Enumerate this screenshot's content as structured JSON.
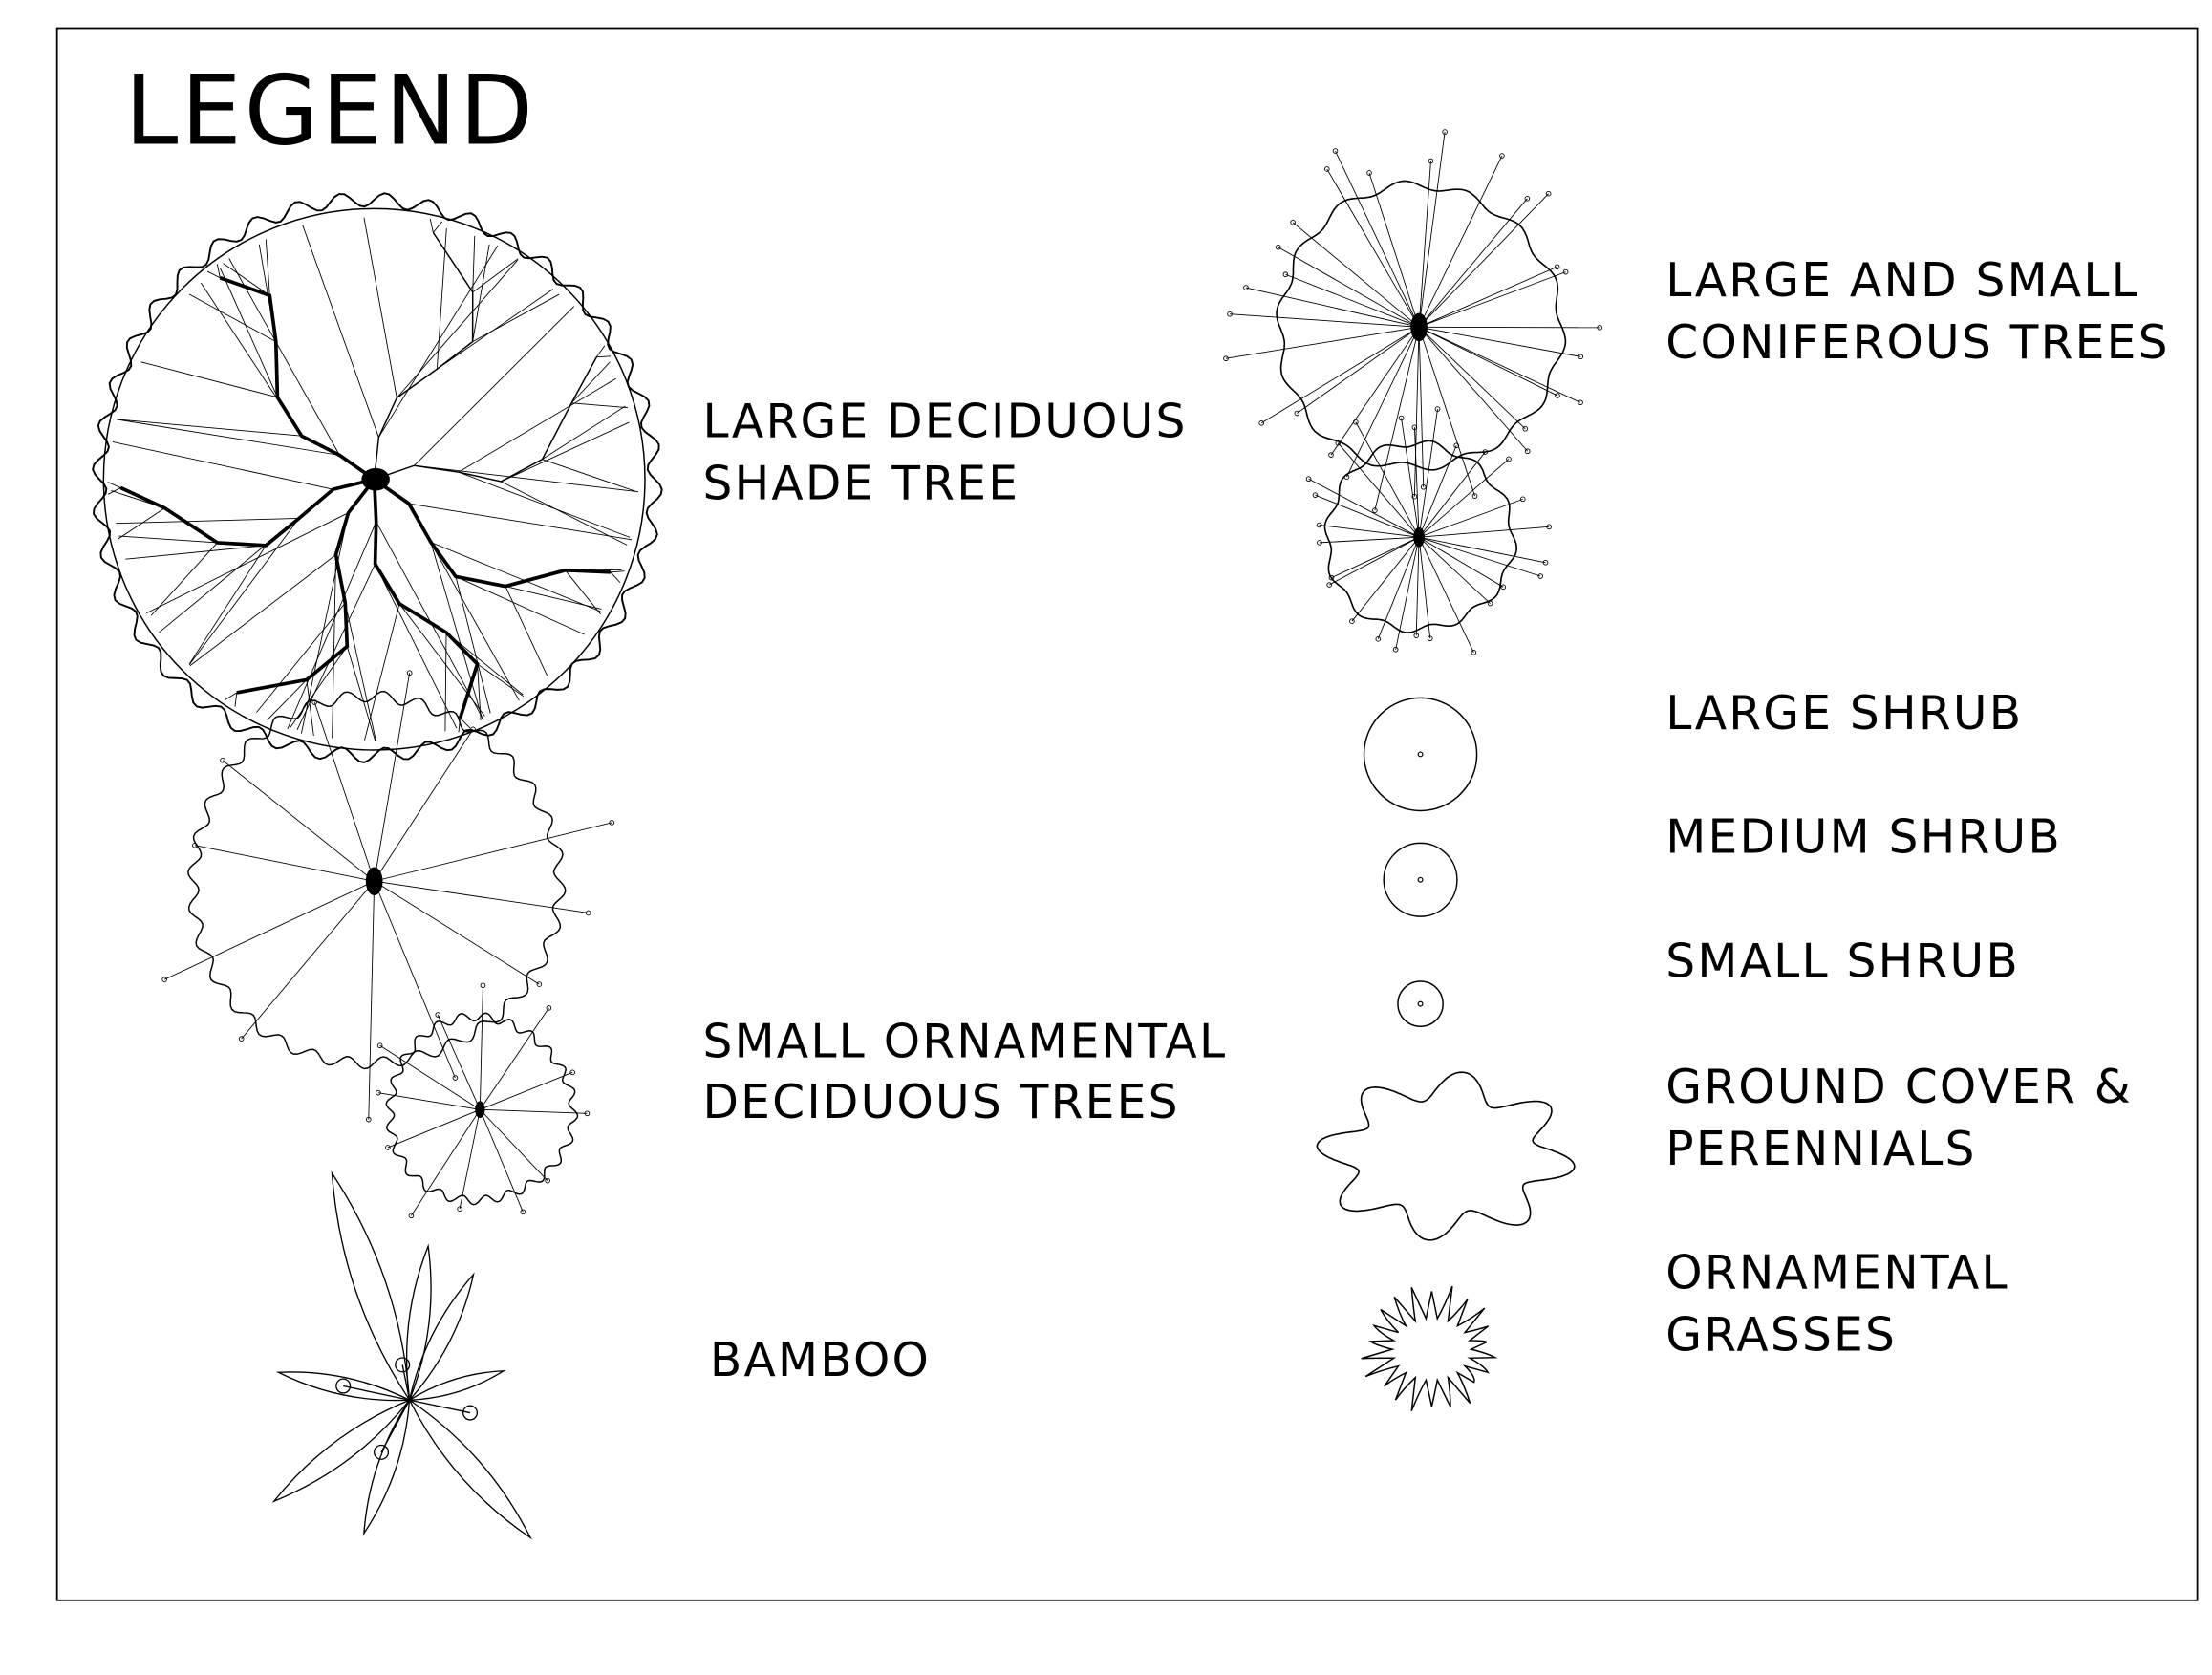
{
  "title": "LEGEND",
  "items": [
    {
      "lines": [
        "LARGE DECIDUOUS",
        "SHADE TREE"
      ]
    },
    {
      "lines": [
        "SMALL ORNAMENTAL",
        "DECIDUOUS TREES"
      ]
    },
    {
      "lines": [
        "BAMBOO"
      ]
    },
    {
      "lines": [
        "LARGE AND SMALL",
        "CONIFEROUS TREES"
      ]
    },
    {
      "lines": [
        "LARGE SHRUB"
      ]
    },
    {
      "lines": [
        "MEDIUM SHRUB"
      ]
    },
    {
      "lines": [
        "SMALL SHRUB"
      ]
    },
    {
      "lines": [
        "GROUND COVER &",
        "PERENNIALS"
      ]
    },
    {
      "lines": [
        "ORNAMENTAL",
        "GRASSES"
      ]
    }
  ]
}
